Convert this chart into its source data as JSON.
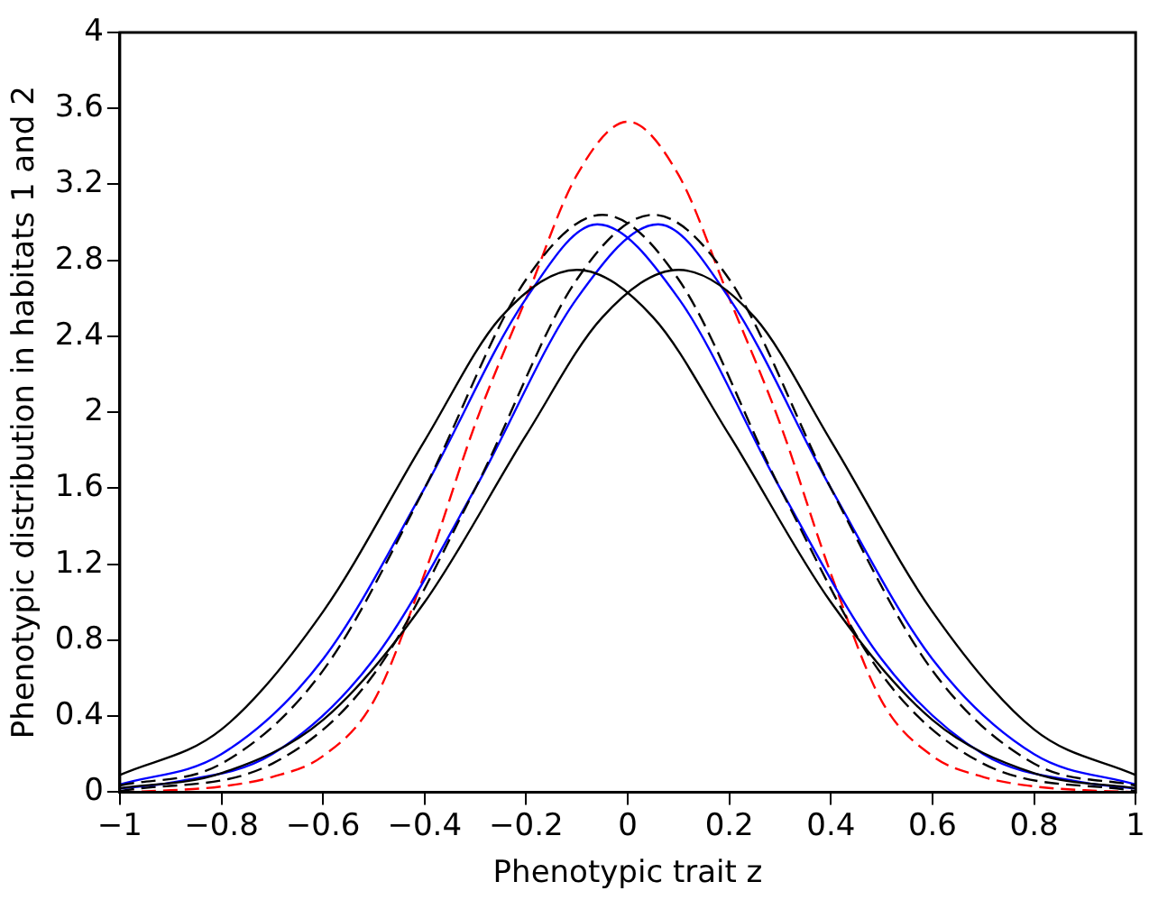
{
  "chart_data": {
    "type": "line",
    "xlabel": "Phenotypic trait z",
    "ylabel": "Phenotypic distribution in habitats 1 and 2",
    "x": [
      -1,
      -0.9,
      -0.8,
      -0.7,
      -0.6,
      -0.5,
      -0.4,
      -0.3,
      -0.2,
      -0.1,
      0,
      0.1,
      0.2,
      0.3,
      0.4,
      0.5,
      0.6,
      0.7,
      0.8,
      0.9,
      1
    ],
    "series": [
      {
        "color": "#000000",
        "line_style": "solid",
        "x": [
          -1,
          -0.8,
          -0.6,
          -0.4,
          -0.25,
          -0.1,
          0.05,
          0.2,
          0.4,
          0.6,
          0.8,
          1
        ],
        "values": [
          0.09,
          0.33,
          0.95,
          1.85,
          2.5,
          2.75,
          2.5,
          1.88,
          1.0,
          0.38,
          0.1,
          0.02
        ]
      },
      {
        "color": "#000000",
        "line_style": "solid",
        "x": [
          -1,
          -0.8,
          -0.6,
          -0.4,
          -0.2,
          -0.05,
          0.1,
          0.25,
          0.4,
          0.6,
          0.8,
          1
        ],
        "values": [
          0.02,
          0.1,
          0.38,
          1.0,
          1.88,
          2.5,
          2.75,
          2.5,
          1.85,
          0.95,
          0.33,
          0.09
        ]
      },
      {
        "color": "#000000",
        "line_style": "dashed",
        "x": [
          -1,
          -0.8,
          -0.6,
          -0.4,
          -0.2,
          -0.05,
          0.1,
          0.3,
          0.5,
          0.7,
          1
        ],
        "values": [
          0.035,
          0.15,
          0.64,
          1.6,
          2.7,
          3.04,
          2.7,
          1.6,
          0.62,
          0.15,
          0.005
        ]
      },
      {
        "color": "#000000",
        "line_style": "dashed",
        "x": [
          -1,
          -0.7,
          -0.5,
          -0.3,
          -0.1,
          0.05,
          0.2,
          0.4,
          0.6,
          0.8,
          1
        ],
        "values": [
          0.005,
          0.15,
          0.62,
          1.6,
          2.7,
          3.04,
          2.7,
          1.6,
          0.64,
          0.15,
          0.035
        ]
      },
      {
        "color": "#0000ff",
        "line_style": "solid",
        "x": [
          -1,
          -0.8,
          -0.6,
          -0.4,
          -0.2,
          -0.06,
          0.1,
          0.3,
          0.5,
          0.7,
          0.9,
          1
        ],
        "values": [
          0.04,
          0.2,
          0.7,
          1.6,
          2.6,
          2.99,
          2.6,
          1.6,
          0.7,
          0.2,
          0.05,
          0.02
        ]
      },
      {
        "color": "#0000ff",
        "line_style": "solid",
        "x": [
          -1,
          -0.9,
          -0.7,
          -0.5,
          -0.3,
          -0.1,
          0.06,
          0.2,
          0.4,
          0.6,
          0.8,
          1
        ],
        "values": [
          0.02,
          0.05,
          0.2,
          0.7,
          1.6,
          2.6,
          2.99,
          2.6,
          1.6,
          0.7,
          0.2,
          0.04
        ]
      },
      {
        "color": "#ff0000",
        "line_style": "dashed",
        "values": [
          0,
          0.01,
          0.03,
          0.08,
          0.19,
          0.48,
          1.15,
          1.94,
          2.6,
          3.25,
          3.53,
          3.25,
          2.6,
          1.94,
          1.15,
          0.48,
          0.19,
          0.08,
          0.03,
          0.01,
          0
        ]
      }
    ],
    "xlim": [
      -1,
      1
    ],
    "xticks": [
      -1,
      -0.8,
      -0.6,
      -0.4,
      -0.2,
      0,
      0.2,
      0.4,
      0.6,
      0.8,
      1
    ],
    "ylim": [
      0,
      4
    ],
    "yticks": [
      0,
      0.4,
      0.8,
      1.2,
      1.6,
      2,
      2.4,
      2.8,
      3.2,
      3.6,
      4
    ],
    "grid": false,
    "legend": false
  }
}
